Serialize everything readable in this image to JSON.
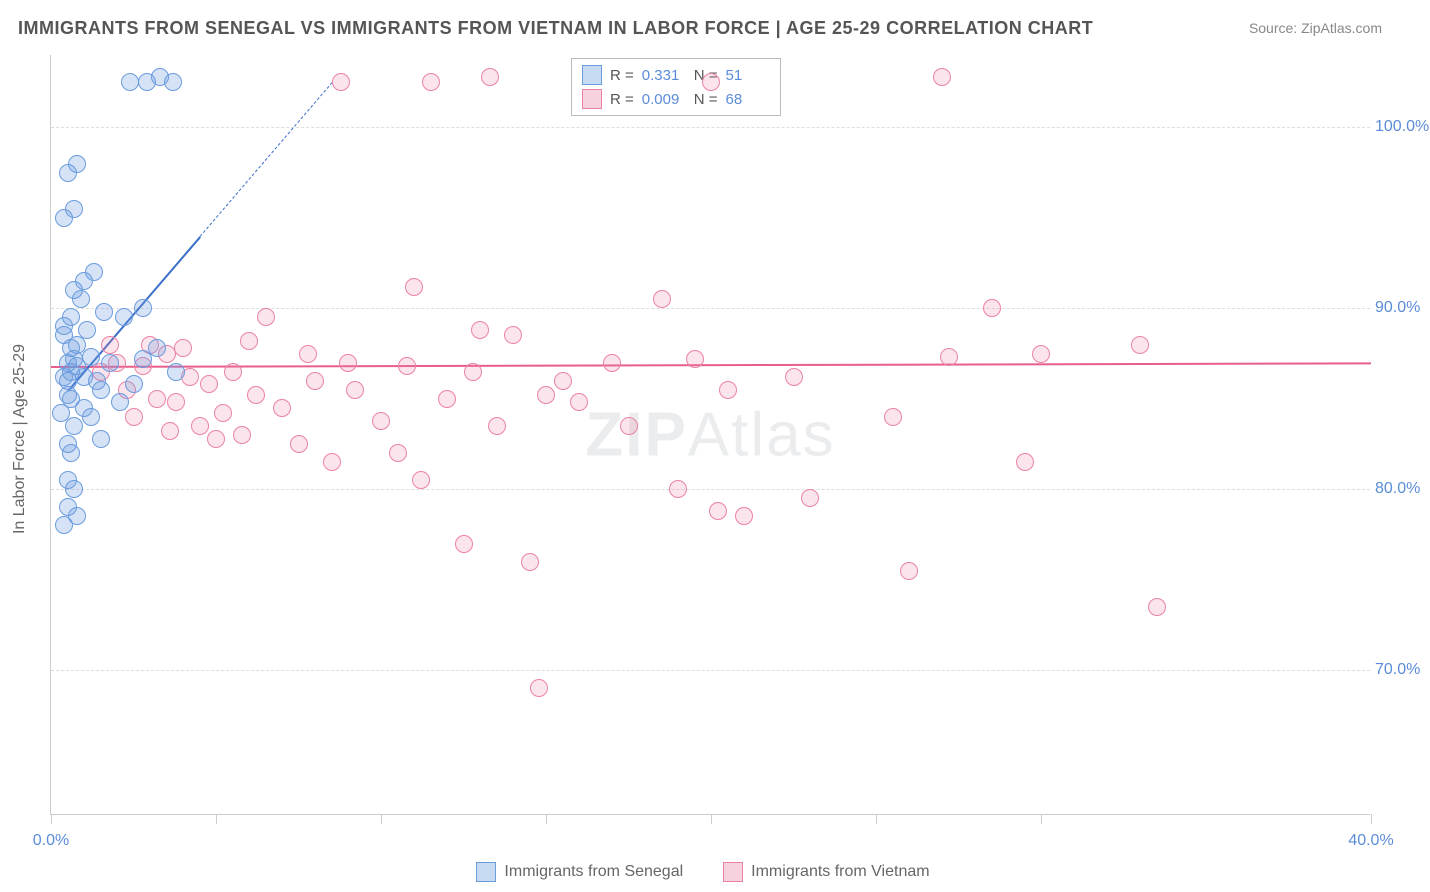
{
  "title": "IMMIGRANTS FROM SENEGAL VS IMMIGRANTS FROM VIETNAM IN LABOR FORCE | AGE 25-29 CORRELATION CHART",
  "source_label": "Source: ",
  "source_name": "ZipAtlas.com",
  "y_axis_title": "In Labor Force | Age 25-29",
  "watermark_bold": "ZIP",
  "watermark_light": "Atlas",
  "chart": {
    "type": "scatter",
    "background_color": "#ffffff",
    "grid_color": "#dddddd",
    "axis_color": "#cccccc",
    "tick_label_color": "#5b8cd8",
    "xlim": [
      0,
      40
    ],
    "ylim": [
      62,
      104
    ],
    "y_ticks": [
      70,
      80,
      90,
      100
    ],
    "y_tick_labels": [
      "70.0%",
      "80.0%",
      "90.0%",
      "100.0%"
    ],
    "x_ticks": [
      0,
      5,
      10,
      15,
      20,
      25,
      30,
      40
    ],
    "x_tick_label_left": "0.0%",
    "x_tick_label_right": "40.0%",
    "marker_radius": 9,
    "marker_stroke_width": 1.5,
    "series": [
      {
        "name": "Immigrants from Senegal",
        "fill_color": "rgba(107,156,222,0.28)",
        "stroke_color": "#6b9cde",
        "swatch_fill": "#c6daf2",
        "swatch_border": "#6b9cde",
        "r_value": "0.331",
        "n_value": "51",
        "trend": {
          "x1": 0.5,
          "y1": 85.5,
          "x2": 4.5,
          "y2": 94,
          "color": "#3b6fc9",
          "dash_extend_x": 8.5,
          "dash_extend_y": 102.5
        },
        "points": [
          [
            0.5,
            87
          ],
          [
            0.6,
            86.5
          ],
          [
            0.5,
            86
          ],
          [
            0.7,
            87.2
          ],
          [
            0.8,
            88
          ],
          [
            0.5,
            85.2
          ],
          [
            0.6,
            85
          ],
          [
            0.4,
            89
          ],
          [
            0.6,
            89.5
          ],
          [
            0.4,
            88.5
          ],
          [
            0.8,
            86.8
          ],
          [
            1.0,
            86.2
          ],
          [
            1.2,
            87.3
          ],
          [
            1.4,
            86
          ],
          [
            1.5,
            85.5
          ],
          [
            1.8,
            87
          ],
          [
            1.0,
            84.5
          ],
          [
            1.2,
            84
          ],
          [
            0.7,
            83.5
          ],
          [
            0.5,
            82.5
          ],
          [
            0.6,
            82
          ],
          [
            0.5,
            80.5
          ],
          [
            0.7,
            80
          ],
          [
            0.5,
            79
          ],
          [
            0.8,
            78.5
          ],
          [
            0.4,
            78
          ],
          [
            0.7,
            91
          ],
          [
            1.0,
            91.5
          ],
          [
            1.3,
            92
          ],
          [
            1.6,
            89.8
          ],
          [
            2.2,
            89.5
          ],
          [
            2.8,
            90
          ],
          [
            3.2,
            87.8
          ],
          [
            3.8,
            86.5
          ],
          [
            0.4,
            95
          ],
          [
            0.7,
            95.5
          ],
          [
            0.5,
            97.5
          ],
          [
            0.8,
            98
          ],
          [
            2.4,
            102.5
          ],
          [
            2.9,
            102.5
          ],
          [
            3.3,
            102.8
          ],
          [
            3.7,
            102.5
          ],
          [
            2.5,
            85.8
          ],
          [
            2.1,
            84.8
          ],
          [
            1.5,
            82.8
          ],
          [
            2.8,
            87.2
          ],
          [
            0.3,
            84.2
          ],
          [
            0.9,
            90.5
          ],
          [
            1.1,
            88.8
          ],
          [
            0.4,
            86.2
          ],
          [
            0.6,
            87.8
          ]
        ]
      },
      {
        "name": "Immigrants from Vietnam",
        "fill_color": "rgba(235,130,165,0.22)",
        "stroke_color": "#eb82a5",
        "swatch_fill": "#f6d1de",
        "swatch_border": "#eb82a5",
        "r_value": "0.009",
        "n_value": "68",
        "trend": {
          "x1": 0,
          "y1": 86.8,
          "x2": 40,
          "y2": 87.0,
          "color": "#e85d8f"
        },
        "points": [
          [
            1.5,
            86.5
          ],
          [
            2.0,
            87.0
          ],
          [
            2.3,
            85.5
          ],
          [
            2.8,
            86.8
          ],
          [
            3.2,
            85.0
          ],
          [
            3.5,
            87.5
          ],
          [
            3.8,
            84.8
          ],
          [
            4.2,
            86.2
          ],
          [
            4.5,
            83.5
          ],
          [
            4.8,
            85.8
          ],
          [
            5.2,
            84.2
          ],
          [
            5.5,
            86.5
          ],
          [
            5.8,
            83.0
          ],
          [
            6.2,
            85.2
          ],
          [
            6.5,
            89.5
          ],
          [
            7.0,
            84.5
          ],
          [
            7.5,
            82.5
          ],
          [
            8.0,
            86.0
          ],
          [
            8.5,
            81.5
          ],
          [
            8.8,
            102.5
          ],
          [
            9.2,
            85.5
          ],
          [
            10.0,
            83.8
          ],
          [
            10.5,
            82.0
          ],
          [
            11.0,
            91.2
          ],
          [
            11.2,
            80.5
          ],
          [
            11.5,
            102.5
          ],
          [
            12.0,
            85.0
          ],
          [
            12.5,
            77.0
          ],
          [
            13.0,
            88.8
          ],
          [
            13.3,
            102.8
          ],
          [
            13.5,
            83.5
          ],
          [
            14.0,
            88.5
          ],
          [
            14.5,
            76.0
          ],
          [
            15.0,
            85.2
          ],
          [
            14.8,
            69.0
          ],
          [
            16.0,
            84.8
          ],
          [
            17.5,
            83.5
          ],
          [
            18.5,
            90.5
          ],
          [
            19.0,
            80.0
          ],
          [
            20.0,
            102.5
          ],
          [
            20.2,
            78.8
          ],
          [
            20.5,
            85.5
          ],
          [
            21.0,
            78.5
          ],
          [
            22.5,
            86.2
          ],
          [
            23.0,
            79.5
          ],
          [
            25.5,
            84.0
          ],
          [
            26.0,
            75.5
          ],
          [
            27.0,
            102.8
          ],
          [
            27.2,
            87.3
          ],
          [
            28.5,
            90.0
          ],
          [
            29.5,
            81.5
          ],
          [
            30.0,
            87.5
          ],
          [
            33.0,
            88.0
          ],
          [
            33.5,
            73.5
          ],
          [
            3.0,
            88.0
          ],
          [
            4.0,
            87.8
          ],
          [
            6.0,
            88.2
          ],
          [
            1.8,
            88.0
          ],
          [
            2.5,
            84.0
          ],
          [
            3.6,
            83.2
          ],
          [
            5.0,
            82.8
          ],
          [
            7.8,
            87.5
          ],
          [
            9.0,
            87.0
          ],
          [
            10.8,
            86.8
          ],
          [
            12.8,
            86.5
          ],
          [
            15.5,
            86.0
          ],
          [
            17.0,
            87.0
          ],
          [
            19.5,
            87.2
          ]
        ]
      }
    ]
  },
  "stats_labels": {
    "r": "R  =",
    "n": "N  ="
  },
  "legend": {
    "series1_label": "Immigrants from Senegal",
    "series2_label": "Immigrants from Vietnam"
  }
}
